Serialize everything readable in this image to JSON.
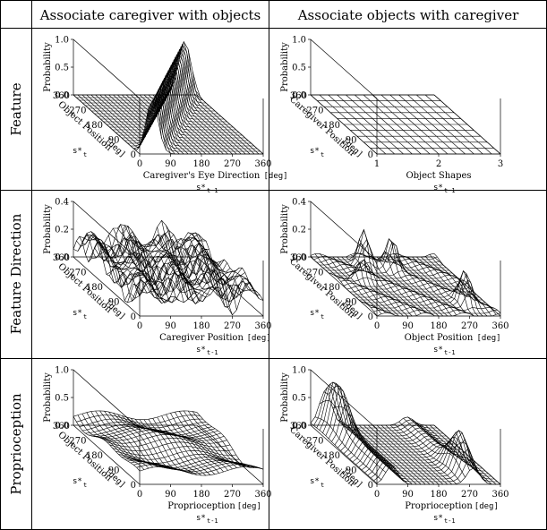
{
  "table": {
    "col_headers": [
      "Associate caregiver with objects",
      "Associate objects with caregiver"
    ],
    "row_labels": [
      "Feature",
      "Feature Direction",
      "Proprioception"
    ]
  },
  "chart_data": [
    {
      "type": "surface",
      "row": "Feature",
      "col": "Associate caregiver with objects",
      "zlabel": "Probability",
      "zticks": [
        "1.0",
        "0.5",
        "0.0"
      ],
      "zlim": [
        0,
        1
      ],
      "depth_label": "Object Position",
      "depth_unit": "[deg]",
      "depth_symbol": "s*",
      "depth_sub": "t",
      "depth_ticks": [
        "360",
        "270",
        "180",
        "90",
        "0"
      ],
      "xlabel": "Caregiver's Eye Direction",
      "xunit": "[deg]",
      "xsymbol": "s*",
      "xsub": "t-1",
      "xticks": [
        "0",
        "90",
        "180",
        "270",
        "360"
      ],
      "pattern": "diagonal ridge of high probability (~1.0) where eye direction matches object position; ~0 elsewhere"
    },
    {
      "type": "surface",
      "row": "Feature",
      "col": "Associate objects with caregiver",
      "zlabel": "Probability",
      "zticks": [
        "1.0",
        "0.5",
        "0.0"
      ],
      "zlim": [
        0,
        1
      ],
      "depth_label": "Caregiver Position",
      "depth_unit": "[deg]",
      "depth_symbol": "s*",
      "depth_sub": "t",
      "depth_ticks": [
        "360",
        "270",
        "180",
        "90",
        "0"
      ],
      "xlabel": "Object Shapes",
      "xunit": "",
      "xsymbol": "s*",
      "xsub": "t-1",
      "xticks": [
        "1",
        "2",
        "3"
      ],
      "pattern": "flat surface, approximately uniform near 0"
    },
    {
      "type": "surface",
      "row": "Feature Direction",
      "col": "Associate caregiver with objects",
      "zlabel": "Probability",
      "zticks": [
        "0.4",
        "0.2",
        "0.0"
      ],
      "zlim": [
        0,
        0.4
      ],
      "depth_label": "Object Position",
      "depth_unit": "[deg]",
      "depth_symbol": "s*",
      "depth_sub": "t",
      "depth_ticks": [
        "360",
        "270",
        "180",
        "90",
        "0"
      ],
      "xlabel": "Caregiver Position",
      "xunit": "[deg]",
      "xsymbol": "s*",
      "xsub": "t-1",
      "xticks": [
        "0",
        "90",
        "180",
        "270",
        "360"
      ],
      "pattern": "noisy bumpy surface with many small peaks"
    },
    {
      "type": "surface",
      "row": "Feature Direction",
      "col": "Associate objects with caregiver",
      "zlabel": "Probability",
      "zticks": [
        "0.4",
        "0.2",
        "0.0"
      ],
      "zlim": [
        0,
        0.4
      ],
      "depth_label": "Caregiver Position",
      "depth_unit": "[deg]",
      "depth_symbol": "s*",
      "depth_sub": "t",
      "depth_ticks": [
        "360",
        "270",
        "180",
        "90",
        "0"
      ],
      "xlabel": "Object Position",
      "xunit": "[deg]",
      "xsymbol": "s*",
      "xsub": "t-1",
      "xticks": [
        "0",
        "90",
        "180",
        "270",
        "360"
      ],
      "pattern": "mostly flat with a few sharp peaks near the back and right"
    },
    {
      "type": "surface",
      "row": "Proprioception",
      "col": "Associate caregiver with objects",
      "zlabel": "Probability",
      "zticks": [
        "1.0",
        "0.5",
        "0.0"
      ],
      "zlim": [
        0,
        1
      ],
      "depth_label": "Object Position",
      "depth_unit": "[deg]",
      "depth_symbol": "s*",
      "depth_sub": "t",
      "depth_ticks": [
        "360",
        "270",
        "180",
        "90",
        "0"
      ],
      "xlabel": "Proprioception",
      "xunit": "[deg]",
      "xsymbol": "s*",
      "xsub": "t-1",
      "xticks": [
        "0",
        "90",
        "180",
        "270",
        "360"
      ],
      "pattern": "low gently undulating surface"
    },
    {
      "type": "surface",
      "row": "Proprioception",
      "col": "Associate objects with caregiver",
      "zlabel": "Probability",
      "zticks": [
        "1.0",
        "0.5",
        "0.0"
      ],
      "zlim": [
        0,
        1
      ],
      "depth_label": "Caregiver Position",
      "depth_unit": "[deg]",
      "depth_symbol": "s*",
      "depth_sub": "t",
      "depth_ticks": [
        "360",
        "270",
        "180",
        "90",
        "0"
      ],
      "xlabel": "Proprioception",
      "xunit": "[deg]",
      "xsymbol": "s*",
      "xsub": "t-1",
      "xticks": [
        "0",
        "90",
        "180",
        "270",
        "360"
      ],
      "pattern": "two clusters of tall peaks (~1.0) at low and high proprioception; flat elsewhere"
    }
  ]
}
